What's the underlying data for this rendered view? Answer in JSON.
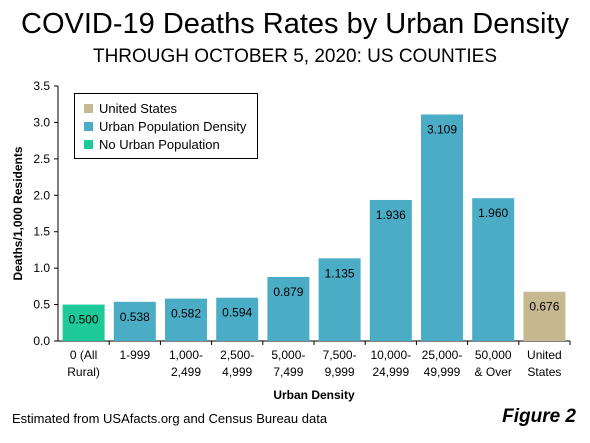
{
  "title": "COVID-19 Deaths Rates by Urban Density",
  "subtitle": "THROUGH OCTOBER 5, 2020: US COUNTIES",
  "footer": "Estimated from USAfacts.org and Census Bureau data",
  "figure_label": "Figure 2",
  "colors": {
    "united_states": "#c6b992",
    "urban": "#4bacc6",
    "no_urban": "#1ec99a"
  },
  "legend": [
    {
      "label": "United States",
      "color_key": "united_states"
    },
    {
      "label": "Urban Population Density",
      "color_key": "urban"
    },
    {
      "label": "No Urban Population",
      "color_key": "no_urban"
    }
  ],
  "chart_data": {
    "type": "bar",
    "title": "COVID-19 Deaths Rates by Urban Density",
    "subtitle": "THROUGH OCTOBER 5, 2020: US COUNTIES",
    "xlabel": "Urban Density",
    "ylabel": "Deaths/1,000 Residents",
    "ylim": [
      0,
      3.5
    ],
    "yticks": [
      "0.0",
      "0.5",
      "1.0",
      "1.5",
      "2.0",
      "2.5",
      "3.0",
      "3.5"
    ],
    "ytick_values": [
      0,
      0.5,
      1,
      1.5,
      2,
      2.5,
      3,
      3.5
    ],
    "grid": false,
    "legend_position": "top-left",
    "categories": [
      [
        "0 (All",
        "Rural)"
      ],
      [
        "1-999"
      ],
      [
        "1,000-",
        "2,499"
      ],
      [
        "2,500-",
        "4,999"
      ],
      [
        "5,000-",
        "7,499"
      ],
      [
        "7,500-",
        "9,999"
      ],
      [
        "10,000-",
        "24,999"
      ],
      [
        "25,000-",
        "49,999"
      ],
      [
        "50,000",
        "& Over"
      ],
      [
        "United",
        "States"
      ]
    ],
    "values": [
      0.5,
      0.538,
      0.582,
      0.594,
      0.879,
      1.135,
      1.936,
      3.109,
      1.96,
      0.676
    ],
    "value_labels": [
      "0.500",
      "0.538",
      "0.582",
      "0.594",
      "0.879",
      "1.135",
      "1.936",
      "3.109",
      "1.960",
      "0.676"
    ],
    "bar_series": [
      "No Urban Population",
      "Urban Population Density",
      "Urban Population Density",
      "Urban Population Density",
      "Urban Population Density",
      "Urban Population Density",
      "Urban Population Density",
      "Urban Population Density",
      "Urban Population Density",
      "United States"
    ]
  }
}
